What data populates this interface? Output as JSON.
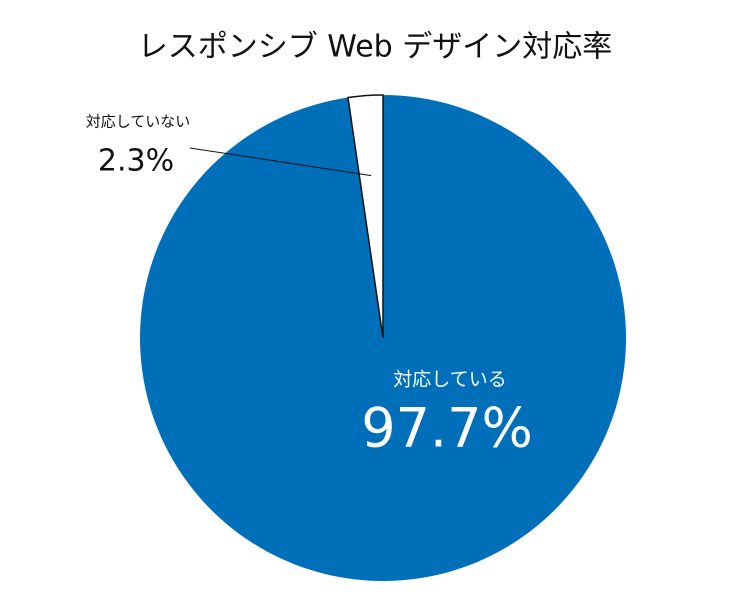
{
  "chart_data": {
    "type": "pie",
    "title": "レスポンシブ Web デザイン対応率",
    "categories": [
      "対応している",
      "対応していない"
    ],
    "values": [
      97.7,
      2.3
    ],
    "value_labels": [
      "97.7%",
      "2.3%"
    ],
    "colors": [
      "#006fba",
      "#ffffff"
    ]
  }
}
